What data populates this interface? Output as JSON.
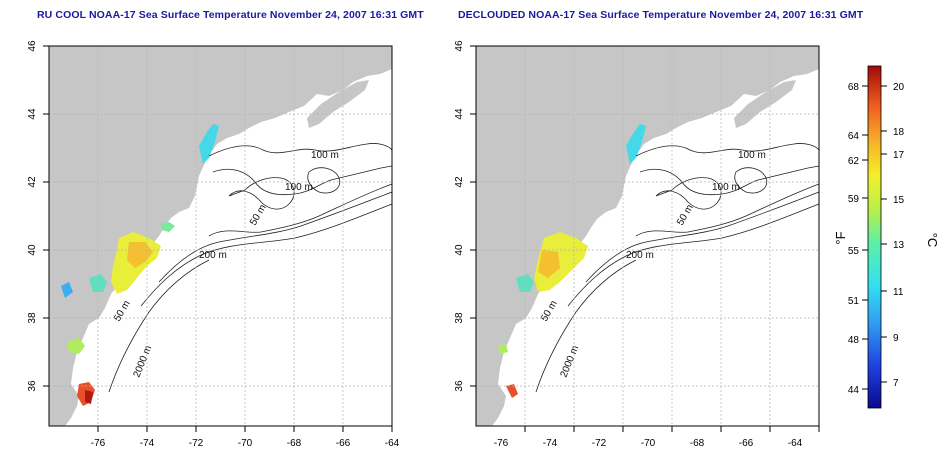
{
  "panels": [
    {
      "title": "RU COOL NOAA-17 Sea Surface Temperature November 24, 2007 16:31 GMT",
      "contour_labels": [
        "100 m",
        "100 m",
        "50 m",
        "200 m",
        "50 m",
        "2000 m"
      ]
    },
    {
      "title": "DECLOUDED NOAA-17 Sea Surface Temperature November 24, 2007 16:31 GMT",
      "contour_labels": [
        "100 m",
        "100 m",
        "50 m",
        "200 m",
        "50 m",
        "2000 m"
      ]
    }
  ],
  "lon_ticks": [
    "-76",
    "-74",
    "-72",
    "-70",
    "-68",
    "-66",
    "-64"
  ],
  "lat_ticks": [
    "46",
    "44",
    "42",
    "40",
    "38",
    "36"
  ],
  "colorbar": {
    "unit_left": "°F",
    "unit_right": "°C",
    "f_ticks": [
      "68",
      "64",
      "62",
      "59",
      "55",
      "51",
      "48",
      "44"
    ],
    "c_ticks": [
      "20",
      "18",
      "17",
      "15",
      "13",
      "11",
      "9",
      "7"
    ]
  },
  "colors": {
    "land": "#c6c6c6",
    "ocean": "#ffffff",
    "title": "#1a1aa0",
    "grid": "#b4b4b4"
  }
}
